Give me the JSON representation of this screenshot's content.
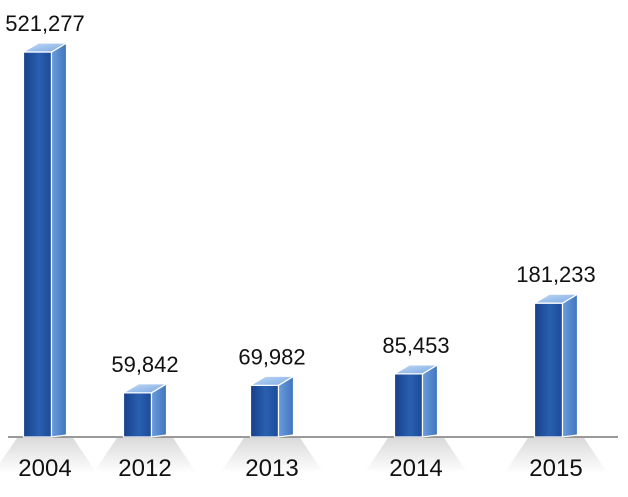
{
  "chart_data": {
    "type": "bar",
    "title": "",
    "xlabel": "",
    "ylabel": "",
    "categories": [
      "2004",
      "2012",
      "2013",
      "2014",
      "2015"
    ],
    "values": [
      521277,
      59842,
      69982,
      85453,
      181233
    ],
    "value_labels": [
      "521,277",
      "59,842",
      "69,982",
      "85,453",
      "181,233"
    ],
    "ylim": [
      0,
      521277
    ],
    "grid": false,
    "legend": "none",
    "style": "3d-column",
    "colors": {
      "front": "#1f4f9e",
      "side": "#4f86cf",
      "top": "#9cc0ee",
      "baseline": "#999999",
      "floor_shadow": "#e6e6e6"
    }
  }
}
